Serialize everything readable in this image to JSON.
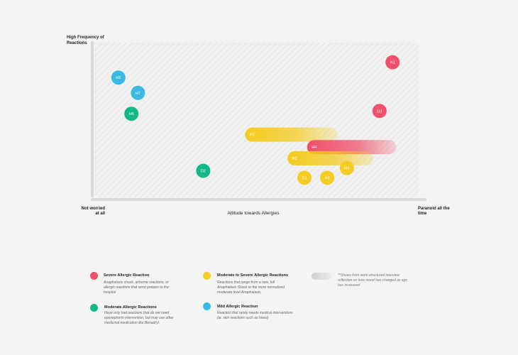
{
  "chart_data": {
    "type": "scatter",
    "xlabel": "Attitude towards Allergies",
    "ylabel": "High Frequency of Reactions",
    "x_min_label": "Not worried at all",
    "x_max_label": "Paranoid all the time",
    "xlim": [
      0,
      100
    ],
    "ylim": [
      0,
      100
    ],
    "grid": false,
    "points": [
      {
        "label": "H1",
        "x": 92,
        "y": 92,
        "category": "severe"
      },
      {
        "label": "H2",
        "x": 8,
        "y": 81,
        "category": "mild"
      },
      {
        "label": "H7",
        "x": 14,
        "y": 70,
        "category": "mild"
      },
      {
        "label": "H6",
        "x": 12,
        "y": 55,
        "category": "moderate"
      },
      {
        "label": "D3",
        "x": 88,
        "y": 57,
        "category": "severe"
      },
      {
        "label": "D2",
        "x": 34,
        "y": 14,
        "category": "moderate"
      },
      {
        "label": "D1",
        "x": 65,
        "y": 9,
        "category": "moderate_severe"
      },
      {
        "label": "H5",
        "x": 72,
        "y": 9,
        "category": "moderate_severe"
      },
      {
        "label": "H3",
        "x": 78,
        "y": 16,
        "category": "moderate_severe"
      }
    ],
    "shifts": [
      {
        "label": "P1",
        "x_start": 49,
        "x_end": 73,
        "y": 40,
        "category": "moderate_severe"
      },
      {
        "label": "H4",
        "x_start": 68,
        "x_end": 91,
        "y": 31,
        "category": "severe"
      },
      {
        "label": "P2",
        "x_start": 62,
        "x_end": 84,
        "y": 23,
        "category": "moderate_severe"
      }
    ]
  },
  "colors": {
    "severe": "#f0506a",
    "moderate_severe": "#f5cc21",
    "moderate": "#12b886",
    "mild": "#3bb9e3",
    "axis": "#d9d9d9"
  },
  "legend": {
    "severe": {
      "title": "Severe Allergic Reaction",
      "desc": "Anaphalaxis shock, airborne reactions, or allergic reactions that send preteen to the hospital"
    },
    "moderate": {
      "title": "Moderate Allergic Reactions",
      "desc": "Have only had reactions that do not need epenepherin intervention, but may use other medicinal medication like Benadryl."
    },
    "moderate_severe": {
      "title": "Moderate  to Severe Allergic Reactions",
      "desc": "Reactions that range from a rare, full Anaphalaxis Shock to the more normalized moderate level Anaphalaxis."
    },
    "mild": {
      "title": "Mild Allergic Reaction",
      "desc": "Reaction that rarely needs medical interventions (ie. skin reactions such as hives)"
    },
    "note": "**Shows from semi-structured interview reflection on how mood has changed as age has increased"
  }
}
